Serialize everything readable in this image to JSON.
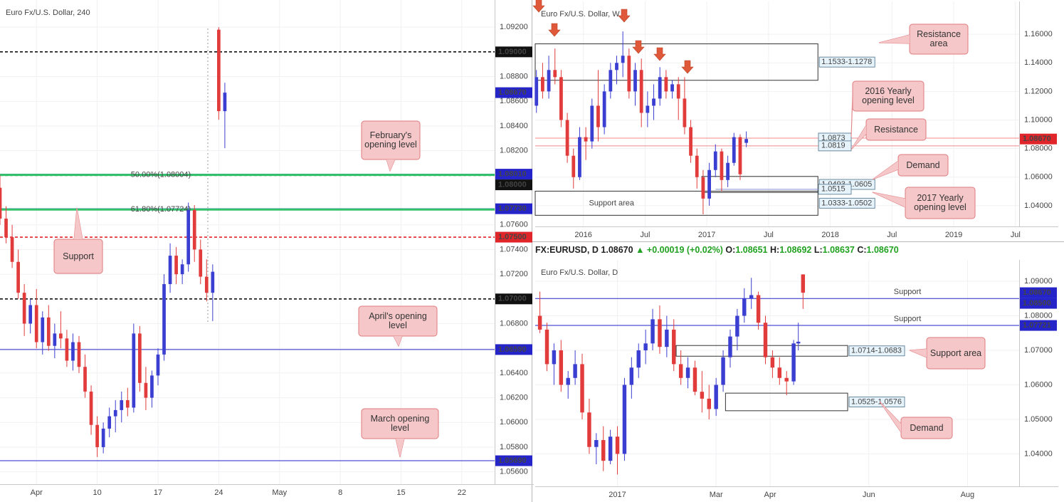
{
  "chart_data": [
    {
      "type": "candlestick",
      "title": "Euro Fx/U.S. Dollar, 240",
      "up_color": "#3b3fd1",
      "down_color": "#e23b3b",
      "grid": true,
      "level_labels": "axis",
      "xlim": [
        -3,
        37.7
      ],
      "xticks": [
        {
          "value": 0,
          "label": "Apr"
        },
        {
          "value": 5,
          "label": "10"
        },
        {
          "value": 10,
          "label": "17"
        },
        {
          "value": 15,
          "label": "24"
        },
        {
          "value": 20,
          "label": "May"
        },
        {
          "value": 25,
          "label": "8"
        },
        {
          "value": 30,
          "label": "15"
        },
        {
          "value": 35,
          "label": "22"
        }
      ],
      "ylim": [
        1.055,
        1.0942
      ],
      "yticks": [
        {
          "value": 1.092,
          "label": "1.09200"
        },
        {
          "value": 1.088,
          "label": "1.08800"
        },
        {
          "value": 1.086,
          "label": "1.08600"
        },
        {
          "value": 1.084,
          "label": "1.08400"
        },
        {
          "value": 1.082,
          "label": "1.08200"
        },
        {
          "value": 1.076,
          "label": "1.07600"
        },
        {
          "value": 1.074,
          "label": "1.07400"
        },
        {
          "value": 1.072,
          "label": "1.07200"
        },
        {
          "value": 1.068,
          "label": "1.06800"
        },
        {
          "value": 1.066,
          "label": "1.06600"
        },
        {
          "value": 1.064,
          "label": "1.06400"
        },
        {
          "value": 1.062,
          "label": "1.06200"
        },
        {
          "value": 1.06,
          "label": "1.06000"
        },
        {
          "value": 1.058,
          "label": "1.05800"
        },
        {
          "value": 1.056,
          "label": "1.05600"
        }
      ],
      "candles": {
        "x": [
          -3,
          -2.5,
          -2,
          -1.5,
          -1,
          -0.5,
          0,
          0.5,
          1,
          1.5,
          2,
          2.5,
          3,
          3.5,
          4,
          4.5,
          5,
          5.5,
          6,
          6.5,
          7,
          7.5,
          8,
          8.5,
          9,
          9.5,
          10,
          10.5,
          11,
          11.5,
          12,
          12.5,
          13,
          13.5,
          14,
          14.5,
          15,
          15.5
        ],
        "open": [
          1.079,
          1.0765,
          1.075,
          1.073,
          1.0705,
          1.068,
          1.0695,
          1.0665,
          1.0685,
          1.0662,
          1.0672,
          1.0668,
          1.065,
          1.0665,
          1.0645,
          1.0625,
          1.0598,
          1.058,
          1.0595,
          1.0605,
          1.061,
          1.0618,
          1.0612,
          1.0672,
          1.0632,
          1.062,
          1.0638,
          1.0655,
          1.0712,
          1.0735,
          1.072,
          1.0728,
          1.0772,
          1.074,
          1.0718,
          1.0705,
          1.0918,
          1.0852
        ],
        "high": [
          1.08,
          1.0775,
          1.076,
          1.074,
          1.0712,
          1.07,
          1.0708,
          1.069,
          1.0695,
          1.068,
          1.069,
          1.0675,
          1.0672,
          1.067,
          1.0655,
          1.063,
          1.0605,
          1.06,
          1.0612,
          1.0618,
          1.0625,
          1.0628,
          1.068,
          1.0678,
          1.0645,
          1.0642,
          1.066,
          1.072,
          1.0745,
          1.0742,
          1.0732,
          1.0778,
          1.0776,
          1.0748,
          1.0732,
          1.0728,
          1.092,
          1.0875
        ],
        "low": [
          1.076,
          1.0745,
          1.0725,
          1.07,
          1.067,
          1.0672,
          1.066,
          1.0655,
          1.0658,
          1.0652,
          1.066,
          1.0645,
          1.0642,
          1.064,
          1.062,
          1.059,
          1.0572,
          1.0575,
          1.0588,
          1.0592,
          1.06,
          1.0605,
          1.0608,
          1.0625,
          1.061,
          1.0612,
          1.063,
          1.065,
          1.0705,
          1.0712,
          1.0712,
          1.0722,
          1.073,
          1.0712,
          1.0698,
          1.0682,
          1.0845,
          1.0822
        ],
        "close": [
          1.0765,
          1.075,
          1.073,
          1.0705,
          1.068,
          1.0695,
          1.0665,
          1.0685,
          1.0662,
          1.0672,
          1.0668,
          1.065,
          1.0665,
          1.0645,
          1.0625,
          1.0598,
          1.058,
          1.0595,
          1.0605,
          1.061,
          1.0618,
          1.0612,
          1.0672,
          1.0632,
          1.062,
          1.0638,
          1.0655,
          1.0712,
          1.0735,
          1.072,
          1.0728,
          1.0772,
          1.074,
          1.0718,
          1.0705,
          1.0722,
          1.0852,
          1.0867
        ]
      },
      "levels": [
        {
          "value": 1.09,
          "label": "1.09000",
          "color": "#111111",
          "dash": true
        },
        {
          "value": 1.0801,
          "label": "1.08010",
          "color": "#2424c8",
          "dash": false
        },
        {
          "value": 1.08,
          "label": "1.08000",
          "color": "#111111",
          "dash": true
        },
        {
          "value": 1.0773,
          "label": "1.07730",
          "color": "#2424c8",
          "dash": false
        },
        {
          "value": 1.075,
          "label": "1.07500",
          "color": "#e0262a",
          "dash": true
        },
        {
          "value": 1.07,
          "label": "1.07000",
          "color": "#111111",
          "dash": true
        },
        {
          "value": 1.0659,
          "label": "1.06590",
          "color": "#2424c8",
          "dash": false
        },
        {
          "value": 1.0569,
          "label": "1.05690",
          "color": "#2424c8",
          "dash": false
        }
      ],
      "fibs": [
        {
          "value": 1.08004,
          "text": "50.00%(1.08004)"
        },
        {
          "value": 1.07724,
          "text": "61.80%(1.07724)"
        }
      ],
      "price_tag": {
        "value": 1.0867,
        "label": "1.08670",
        "color": "#2424c8"
      },
      "annotations": [
        {
          "text": "February's opening level"
        },
        {
          "text": "Support"
        },
        {
          "text": "April's opening level"
        },
        {
          "text": "March opening level"
        }
      ]
    },
    {
      "type": "candlestick",
      "title": "Euro Fx/U.S. Dollar, W",
      "up_color": "#3b3fd1",
      "down_color": "#e23b3b",
      "grid": true,
      "level_labels": "box",
      "xlim": [
        2015.61,
        2019.53
      ],
      "xticks": [
        2016,
        {
          "value": 2016.5,
          "label": "Jul"
        },
        2017,
        {
          "value": 2017.5,
          "label": "Jul"
        },
        2018,
        {
          "value": 2018.5,
          "label": "Jul"
        },
        2019,
        {
          "value": 2019.5,
          "label": "Jul"
        }
      ],
      "ylim": [
        1.0255,
        1.183
      ],
      "yticks": [
        {
          "value": 1.16,
          "label": "1.16000"
        },
        {
          "value": 1.14,
          "label": "1.14000"
        },
        {
          "value": 1.12,
          "label": "1.12000"
        },
        {
          "value": 1.1,
          "label": "1.10000"
        },
        {
          "value": 1.08,
          "label": "1.08000"
        },
        {
          "value": 1.06,
          "label": "1.06000"
        },
        {
          "value": 1.04,
          "label": "1.04000"
        }
      ],
      "candles": {
        "x": [
          2015.62,
          2015.67,
          2015.72,
          2015.77,
          2015.82,
          2015.87,
          2015.92,
          2015.97,
          2016.02,
          2016.07,
          2016.12,
          2016.17,
          2016.22,
          2016.27,
          2016.32,
          2016.37,
          2016.42,
          2016.47,
          2016.52,
          2016.57,
          2016.62,
          2016.67,
          2016.72,
          2016.77,
          2016.82,
          2016.87,
          2016.92,
          2016.97,
          2017.02,
          2017.07,
          2017.12,
          2017.17,
          2017.22,
          2017.27,
          2017.32
        ],
        "open": [
          1.11,
          1.13,
          1.12,
          1.135,
          1.13,
          1.1,
          1.075,
          1.06,
          1.088,
          1.085,
          1.11,
          1.095,
          1.12,
          1.135,
          1.14,
          1.145,
          1.12,
          1.135,
          1.105,
          1.11,
          1.115,
          1.13,
          1.12,
          1.125,
          1.115,
          1.095,
          1.075,
          1.06,
          1.045,
          1.065,
          1.078,
          1.058,
          1.07,
          1.088,
          1.084
        ],
        "high": [
          1.135,
          1.14,
          1.145,
          1.15,
          1.135,
          1.105,
          1.08,
          1.095,
          1.095,
          1.115,
          1.135,
          1.125,
          1.14,
          1.145,
          1.162,
          1.15,
          1.14,
          1.143,
          1.12,
          1.125,
          1.137,
          1.135,
          1.128,
          1.13,
          1.13,
          1.1,
          1.08,
          1.065,
          1.07,
          1.083,
          1.08,
          1.075,
          1.091,
          1.09,
          1.092
        ],
        "low": [
          1.105,
          1.115,
          1.115,
          1.125,
          1.095,
          1.07,
          1.052,
          1.058,
          1.072,
          1.08,
          1.085,
          1.09,
          1.115,
          1.125,
          1.13,
          1.115,
          1.11,
          1.095,
          1.095,
          1.1,
          1.11,
          1.115,
          1.115,
          1.1,
          1.09,
          1.07,
          1.052,
          1.034,
          1.04,
          1.06,
          1.05,
          1.053,
          1.068,
          1.058,
          1.081
        ],
        "close": [
          1.13,
          1.12,
          1.135,
          1.13,
          1.1,
          1.075,
          1.06,
          1.088,
          1.085,
          1.11,
          1.095,
          1.12,
          1.135,
          1.14,
          1.145,
          1.12,
          1.135,
          1.105,
          1.11,
          1.115,
          1.13,
          1.12,
          1.125,
          1.115,
          1.095,
          1.075,
          1.06,
          1.045,
          1.065,
          1.078,
          1.058,
          1.07,
          1.088,
          1.062,
          1.0867
        ]
      },
      "zones": [
        {
          "label": "1.1533-1.1278",
          "high": 1.1533,
          "low": 1.1278,
          "from": 2015.61,
          "to": 2017.9
        },
        {
          "label": "1.0493-1.0605",
          "high": 1.0605,
          "low": 1.0493,
          "from": 2016.96,
          "to": 2017.9
        },
        {
          "label": "1.0333-1.0502",
          "high": 1.0502,
          "low": 1.0333,
          "from": 2015.61,
          "to": 2017.9,
          "text": "Support area"
        }
      ],
      "levels": [
        {
          "value": 1.0873,
          "label": "1.0873",
          "color": "#f08a8a",
          "dash": false
        },
        {
          "value": 1.0819,
          "label": "1.0819",
          "color": "#f08a8a",
          "dash": false
        },
        {
          "value": 1.0515,
          "label": "1.0515",
          "color": "#7f8fd0",
          "dash": false,
          "from": 2017.07,
          "to": 2017.9
        }
      ],
      "price_tag": {
        "value": 1.0867,
        "label": "1.08670",
        "color": "#e0262a"
      },
      "annotations": [
        {
          "text": "Resistance area"
        },
        {
          "text": "2016 Yearly opening level"
        },
        {
          "text": "Resistance"
        },
        {
          "text": "Demand"
        },
        {
          "text": "2017 Yearly opening level"
        }
      ]
    },
    {
      "type": "candlestick",
      "title": "Euro Fx/U.S. Dollar, D",
      "up_color": "#3b3fd1",
      "down_color": "#e23b3b",
      "grid": true,
      "level_labels": "axis",
      "xlim": [
        -35,
        171
      ],
      "xticks": [
        {
          "value": 0,
          "label": "2017"
        },
        {
          "value": 42,
          "label": "Mar"
        },
        {
          "value": 65,
          "label": "Apr"
        },
        {
          "value": 107,
          "label": "Jun"
        },
        {
          "value": 149,
          "label": "Aug"
        }
      ],
      "ylim": [
        1.0306,
        1.0962
      ],
      "yticks": [
        {
          "value": 1.09,
          "label": "1.09000"
        },
        {
          "value": 1.08,
          "label": "1.08000"
        },
        {
          "value": 1.07,
          "label": "1.07000"
        },
        {
          "value": 1.06,
          "label": "1.06000"
        },
        {
          "value": 1.05,
          "label": "1.05000"
        },
        {
          "value": 1.04,
          "label": "1.04000"
        }
      ],
      "candles": {
        "x": [
          -33,
          -30,
          -27,
          -24,
          -21,
          -18,
          -15,
          -12,
          -9,
          -6,
          -3,
          0,
          3,
          6,
          9,
          12,
          15,
          18,
          21,
          24,
          27,
          30,
          33,
          36,
          39,
          42,
          45,
          48,
          51,
          54,
          57,
          60,
          63,
          66,
          69,
          72,
          75,
          77,
          79
        ],
        "open": [
          1.08,
          1.076,
          1.066,
          1.07,
          1.06,
          1.062,
          1.066,
          1.052,
          1.042,
          1.044,
          1.038,
          1.045,
          1.04,
          1.06,
          1.065,
          1.07,
          1.072,
          1.079,
          1.071,
          1.076,
          1.066,
          1.062,
          1.065,
          1.058,
          1.056,
          1.053,
          1.06,
          1.068,
          1.074,
          1.08,
          1.085,
          1.086,
          1.078,
          1.068,
          1.065,
          1.062,
          1.061,
          1.072,
          1.092
        ],
        "high": [
          1.087,
          1.078,
          1.072,
          1.073,
          1.064,
          1.07,
          1.069,
          1.056,
          1.046,
          1.048,
          1.047,
          1.048,
          1.062,
          1.068,
          1.072,
          1.076,
          1.082,
          1.083,
          1.08,
          1.079,
          1.07,
          1.068,
          1.067,
          1.064,
          1.06,
          1.062,
          1.07,
          1.076,
          1.082,
          1.088,
          1.091,
          1.087,
          1.08,
          1.07,
          1.068,
          1.064,
          1.073,
          1.078,
          1.092
        ],
        "low": [
          1.075,
          1.064,
          1.06,
          1.058,
          1.056,
          1.06,
          1.05,
          1.04,
          1.037,
          1.035,
          1.037,
          1.034,
          1.038,
          1.056,
          1.062,
          1.066,
          1.07,
          1.069,
          1.068,
          1.064,
          1.06,
          1.059,
          1.057,
          1.052,
          1.05,
          1.051,
          1.058,
          1.065,
          1.07,
          1.078,
          1.082,
          1.076,
          1.066,
          1.062,
          1.06,
          1.057,
          1.06,
          1.07,
          1.082
        ],
        "close": [
          1.076,
          1.066,
          1.07,
          1.06,
          1.062,
          1.066,
          1.052,
          1.042,
          1.044,
          1.038,
          1.045,
          1.04,
          1.06,
          1.065,
          1.07,
          1.072,
          1.079,
          1.071,
          1.076,
          1.066,
          1.062,
          1.065,
          1.058,
          1.056,
          1.053,
          1.06,
          1.068,
          1.074,
          1.08,
          1.085,
          1.086,
          1.078,
          1.068,
          1.065,
          1.062,
          1.061,
          1.072,
          1.0725,
          1.0867
        ]
      },
      "zones": [
        {
          "label": "1.0714-1.0683",
          "high": 1.0714,
          "low": 1.0683,
          "from": 25,
          "to": 98
        },
        {
          "label": "1.0525-1.0576",
          "high": 1.0576,
          "low": 1.0525,
          "from": 46,
          "to": 98
        }
      ],
      "levels": [
        {
          "value": 1.085,
          "label": "1.08500",
          "color": "#2424c8",
          "dash": false,
          "text": "Support"
        },
        {
          "value": 1.07721,
          "label": "1.07721",
          "color": "#2424c8",
          "dash": false,
          "text": "Support"
        }
      ],
      "price_tag": {
        "value": 1.0867,
        "label": "1.08670",
        "color": "#2424c8"
      },
      "annotations": [
        {
          "text": "Support area"
        },
        {
          "text": "Demand"
        }
      ]
    }
  ],
  "ticker_bar": {
    "symbol": "FX:EURUSD, D",
    "last": "1.08670",
    "change": "▲ +0.00019 (+0.02%)",
    "o_label": "O:",
    "o": "1.08651",
    "h_label": "H:",
    "h": "1.08692",
    "l_label": "L:",
    "l": "1.08637",
    "c_label": "C:",
    "c": "1.08670"
  }
}
